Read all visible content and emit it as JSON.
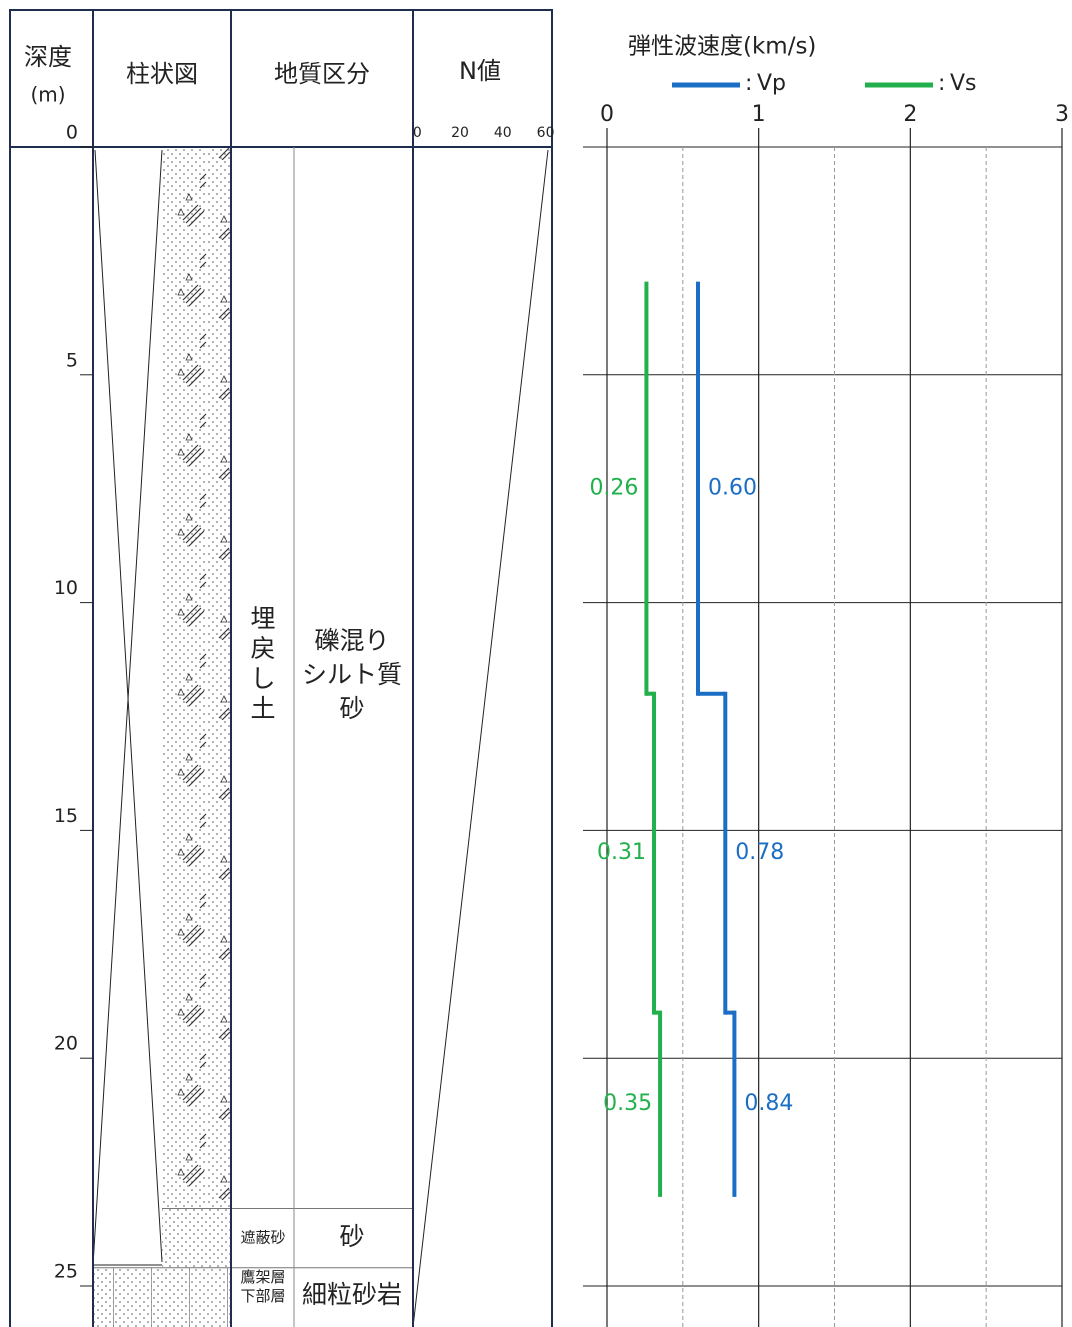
{
  "log": {
    "depth_header": "深度",
    "depth_unit": "(m)",
    "column_header": "柱状図",
    "geology_header": "地質区分",
    "n_header": "N値",
    "n_ticks": [
      0,
      20,
      40,
      60
    ],
    "n_lim": [
      -2,
      63
    ],
    "layers": [
      {
        "top": 0,
        "bottom": 23.3,
        "name": [
          "埋",
          "戻",
          "し",
          "土"
        ],
        "soil": [
          "礫混り",
          "シルト質",
          "砂"
        ]
      },
      {
        "top": 23.3,
        "bottom": 24.6,
        "name": [
          "遮蔽砂"
        ],
        "soil": [
          "砂"
        ]
      },
      {
        "top": 24.6,
        "bottom": 25.9,
        "name": [
          "鷹架層",
          "下部層"
        ],
        "soil": [
          "細粒砂岩"
        ]
      }
    ]
  },
  "chart_data": {
    "type": "step",
    "title": "弾性波速度(km/s)",
    "legend_separator": ":",
    "depth_bounds": [
      3,
      12,
      19,
      23
    ],
    "series": [
      {
        "name": "Vp",
        "color": "#1a6fc4",
        "values": [
          0.6,
          0.78,
          0.84
        ],
        "value_labels": [
          "0.60",
          "0.78",
          "0.84"
        ]
      },
      {
        "name": "Vs",
        "color": "#22b04c",
        "values": [
          0.26,
          0.31,
          0.35
        ],
        "value_labels": [
          "0.26",
          "0.31",
          "0.35"
        ]
      }
    ],
    "xlim": [
      0,
      3
    ],
    "xticks": [
      0,
      1,
      2,
      3
    ],
    "x_minor_ticks": [
      0.5,
      1.5,
      2.5
    ],
    "ylim": [
      0,
      25.9
    ],
    "yticks": [
      0,
      5,
      10,
      15,
      20,
      25
    ],
    "grid": true
  }
}
